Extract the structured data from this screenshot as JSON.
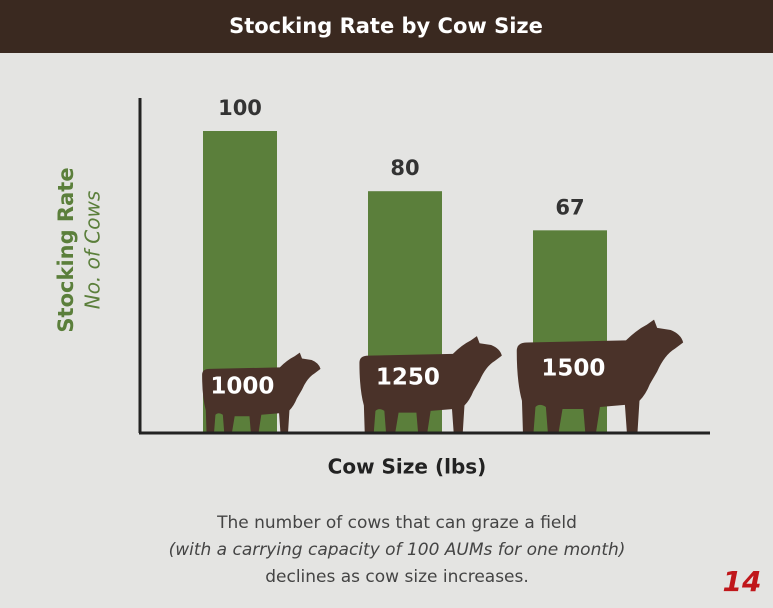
{
  "chart_data": {
    "type": "bar",
    "title": "Stocking Rate by Cow Size",
    "y_label": "Stocking Rate",
    "y_sublabel": "No. of Cows",
    "x_label": "Cow Size (lbs)",
    "categories": [
      "1000",
      "1250",
      "1500"
    ],
    "values": [
      100,
      80,
      67
    ],
    "color": "#5b7f3b",
    "ylim": [
      0,
      100
    ],
    "caption": [
      "The number of cows that can graze a field",
      "(with a carrying capacity of 100 AUMs for one month)",
      "declines as cow size increases."
    ],
    "page_number": "14"
  }
}
